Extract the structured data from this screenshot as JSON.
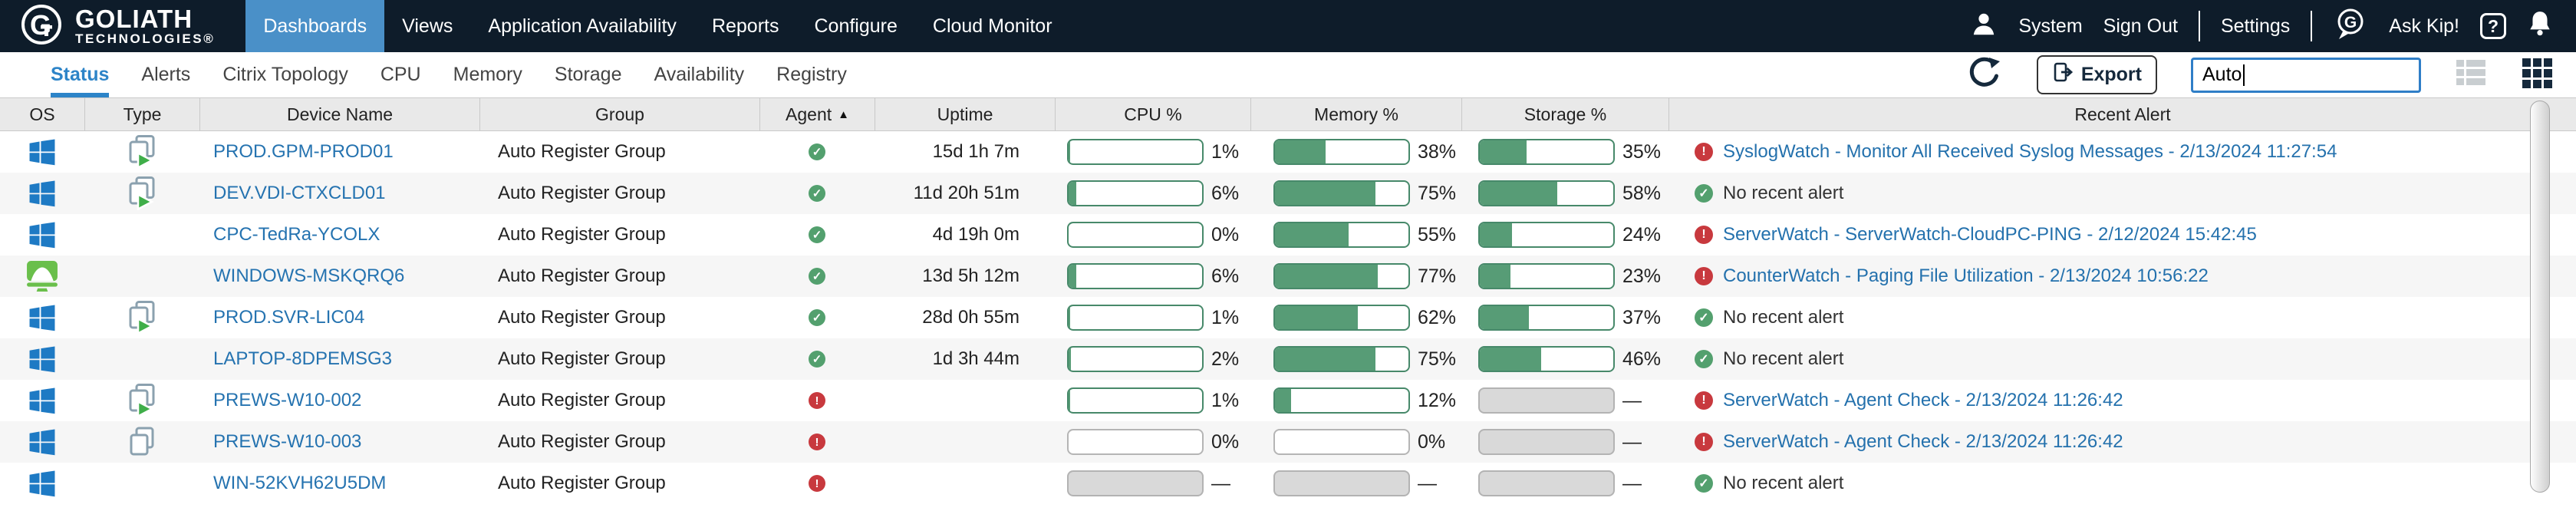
{
  "brand": {
    "name": "GOLIATH",
    "sub": "TECHNOLOGIES®"
  },
  "nav": {
    "items": [
      {
        "label": "Dashboards",
        "active": true
      },
      {
        "label": "Views",
        "active": false
      },
      {
        "label": "Application Availability",
        "active": false
      },
      {
        "label": "Reports",
        "active": false
      },
      {
        "label": "Configure",
        "active": false
      },
      {
        "label": "Cloud Monitor",
        "active": false
      }
    ],
    "right": {
      "system": "System",
      "sign_out": "Sign Out",
      "settings": "Settings",
      "ask_kip": "Ask Kip!",
      "help": "?"
    }
  },
  "toolbar": {
    "tabs": [
      {
        "label": "Status",
        "active": true
      },
      {
        "label": "Alerts",
        "active": false
      },
      {
        "label": "Citrix Topology",
        "active": false
      },
      {
        "label": "CPU",
        "active": false
      },
      {
        "label": "Memory",
        "active": false
      },
      {
        "label": "Storage",
        "active": false
      },
      {
        "label": "Availability",
        "active": false
      },
      {
        "label": "Registry",
        "active": false
      }
    ],
    "export_label": "Export",
    "search_value": "Auto"
  },
  "table": {
    "columns": [
      {
        "label": "OS"
      },
      {
        "label": "Type"
      },
      {
        "label": "Device Name"
      },
      {
        "label": "Group"
      },
      {
        "label": "Agent",
        "sort": "asc",
        "arrow": "▲"
      },
      {
        "label": "Uptime"
      },
      {
        "label": "CPU %"
      },
      {
        "label": "Memory %"
      },
      {
        "label": "Storage %"
      },
      {
        "label": "Recent Alert"
      }
    ],
    "rows": [
      {
        "os": "windows",
        "type": "published-app",
        "name": "PROD.GPM-PROD01",
        "group": "Auto Register Group",
        "agent": "up",
        "uptime": "15d 1h 7m",
        "cpu": {
          "pct": 1,
          "label": "1%",
          "variant": "green"
        },
        "memory": {
          "pct": 38,
          "label": "38%",
          "variant": "green"
        },
        "storage": {
          "pct": 35,
          "label": "35%",
          "variant": "green"
        },
        "alert": {
          "status": "error",
          "text": "SyslogWatch - Monitor All Received Syslog Messages - 2/13/2024 11:27:54"
        }
      },
      {
        "os": "windows",
        "type": "published-app",
        "name": "DEV.VDI-CTXCLD01",
        "group": "Auto Register Group",
        "agent": "up",
        "uptime": "11d 20h 51m",
        "cpu": {
          "pct": 6,
          "label": "6%",
          "variant": "green"
        },
        "memory": {
          "pct": 75,
          "label": "75%",
          "variant": "green"
        },
        "storage": {
          "pct": 58,
          "label": "58%",
          "variant": "green"
        },
        "alert": {
          "status": "ok",
          "text": "No recent alert"
        }
      },
      {
        "os": "windows",
        "type": null,
        "name": "CPC-TedRa-YCOLX",
        "group": "Auto Register Group",
        "agent": "up",
        "uptime": "4d 19h 0m",
        "cpu": {
          "pct": 0,
          "label": "0%",
          "variant": "green"
        },
        "memory": {
          "pct": 55,
          "label": "55%",
          "variant": "green"
        },
        "storage": {
          "pct": 24,
          "label": "24%",
          "variant": "green"
        },
        "alert": {
          "status": "error",
          "text": "ServerWatch - ServerWatch-CloudPC-PING - 2/12/2024 15:42:45"
        }
      },
      {
        "os": "cloud-pc",
        "type": null,
        "name": "WINDOWS-MSKQRQ6",
        "group": "Auto Register Group",
        "agent": "up",
        "uptime": "13d 5h 12m",
        "cpu": {
          "pct": 6,
          "label": "6%",
          "variant": "green"
        },
        "memory": {
          "pct": 77,
          "label": "77%",
          "variant": "green"
        },
        "storage": {
          "pct": 23,
          "label": "23%",
          "variant": "green"
        },
        "alert": {
          "status": "error",
          "text": "CounterWatch - Paging File Utilization - 2/13/2024 10:56:22"
        }
      },
      {
        "os": "windows",
        "type": "published-app",
        "name": "PROD.SVR-LIC04",
        "group": "Auto Register Group",
        "agent": "up",
        "uptime": "28d 0h 55m",
        "cpu": {
          "pct": 1,
          "label": "1%",
          "variant": "green"
        },
        "memory": {
          "pct": 62,
          "label": "62%",
          "variant": "green"
        },
        "storage": {
          "pct": 37,
          "label": "37%",
          "variant": "green"
        },
        "alert": {
          "status": "ok",
          "text": "No recent alert"
        }
      },
      {
        "os": "windows",
        "type": null,
        "name": "LAPTOP-8DPEMSG3",
        "group": "Auto Register Group",
        "agent": "up",
        "uptime": "1d 3h 44m",
        "cpu": {
          "pct": 2,
          "label": "2%",
          "variant": "green"
        },
        "memory": {
          "pct": 75,
          "label": "75%",
          "variant": "green"
        },
        "storage": {
          "pct": 46,
          "label": "46%",
          "variant": "green"
        },
        "alert": {
          "status": "ok",
          "text": "No recent alert"
        }
      },
      {
        "os": "windows",
        "type": "published-app",
        "name": "PREWS-W10-002",
        "group": "Auto Register Group",
        "agent": "down",
        "uptime": "",
        "cpu": {
          "pct": 1,
          "label": "1%",
          "variant": "green"
        },
        "memory": {
          "pct": 12,
          "label": "12%",
          "variant": "green"
        },
        "storage": {
          "pct": 100,
          "label": "—",
          "variant": "na"
        },
        "alert": {
          "status": "error",
          "text": "ServerWatch - Agent Check - 2/13/2024 11:26:42"
        }
      },
      {
        "os": "windows",
        "type": "desktop-pair",
        "name": "PREWS-W10-003",
        "group": "Auto Register Group",
        "agent": "down",
        "uptime": "",
        "cpu": {
          "pct": 0,
          "label": "0%",
          "variant": "plain"
        },
        "memory": {
          "pct": 0,
          "label": "0%",
          "variant": "plain"
        },
        "storage": {
          "pct": 100,
          "label": "—",
          "variant": "na"
        },
        "alert": {
          "status": "error",
          "text": "ServerWatch - Agent Check - 2/13/2024 11:26:42"
        }
      },
      {
        "os": "windows",
        "type": null,
        "name": "WIN-52KVH62U5DM",
        "group": "Auto Register Group",
        "agent": "down",
        "uptime": "",
        "cpu": {
          "pct": 100,
          "label": "—",
          "variant": "na"
        },
        "memory": {
          "pct": 100,
          "label": "—",
          "variant": "na"
        },
        "storage": {
          "pct": 100,
          "label": "—",
          "variant": "na"
        },
        "alert": {
          "status": "ok",
          "text": "No recent alert"
        }
      }
    ]
  },
  "icons": {
    "agent_up": "✓",
    "agent_down": "!",
    "alert_ok": "✓",
    "alert_error": "!"
  },
  "colors": {
    "header_bg": "#0e1c2a",
    "active_nav": "#4a90c8",
    "tab_active": "#2d84c8",
    "link": "#2471ad",
    "device_link": "#2573b0",
    "bar_green": "#579c76",
    "status_green": "#53a06e",
    "status_red": "#c8393e",
    "windows_blue": "#1e7ac4",
    "cloud_pc_green": "#6abf4b"
  }
}
